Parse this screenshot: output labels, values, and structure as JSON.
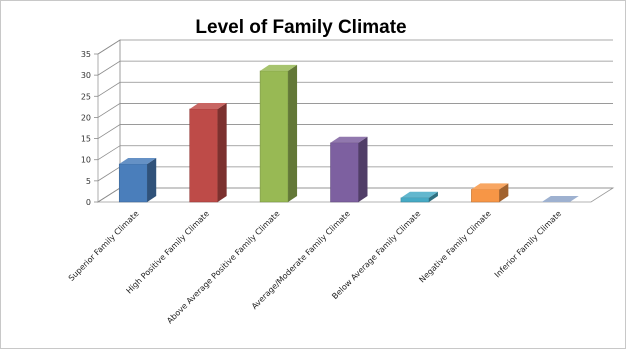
{
  "chart_data": {
    "type": "bar",
    "title": "Level of Family Climate",
    "xlabel": "",
    "ylabel": "",
    "ylim": [
      0,
      35
    ],
    "yticks": [
      0,
      5,
      10,
      15,
      20,
      25,
      30,
      35
    ],
    "grid": true,
    "legend": "none",
    "three_d": true,
    "categories": [
      "Superior Family Climate",
      "High Positive Family Climate",
      "Above Average Positive Family Climate",
      "Average/Moderate Family Climate",
      "Below Average Family Climate",
      "Negative Family Climate",
      "Inferior Family Climate"
    ],
    "values": [
      9,
      22,
      31,
      14,
      1,
      3,
      0
    ],
    "colors": [
      "#4a7ebb",
      "#be4b48",
      "#98b954",
      "#7d60a0",
      "#46aac5",
      "#f79646",
      "#8da3c8"
    ]
  }
}
